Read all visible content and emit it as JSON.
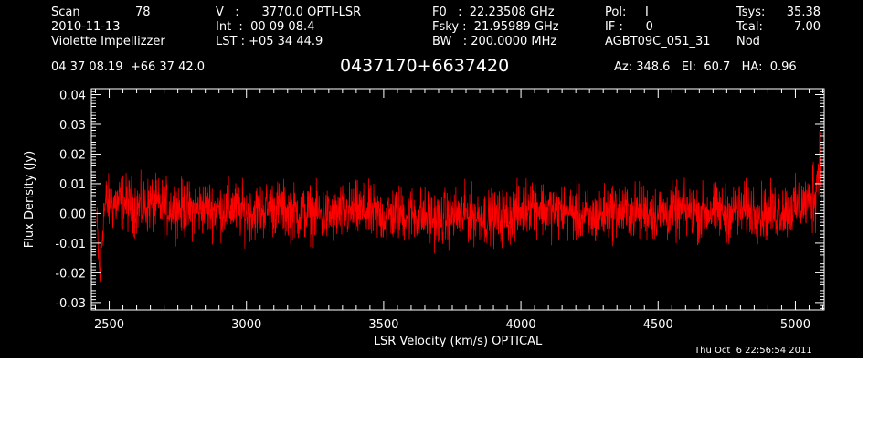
{
  "header": {
    "scan_label": "Scan",
    "scan_number": "78",
    "date": "2010-11-13",
    "observer": "Violette Impellizzer",
    "v_line": "V   :      3770.0 OPTI-LSR",
    "int_line": "Int  :  00 09 08.4",
    "lst_line": "LST : +05 34 44.9",
    "f0_line": "F0   :  22.23508 GHz",
    "fsky_line": "Fsky :  21.95989 GHz",
    "bw_line": "BW   : 200.0000 MHz",
    "pol_line": "Pol:     I",
    "if_line": "IF :      0",
    "project": "AGBT09C_051_31",
    "tsys_label": "Tsys:",
    "tsys_value": "35.38",
    "tcal_label": "Tcal:",
    "tcal_value": "7.00",
    "nod": "Nod",
    "coords": "04 37 08.19  +66 37 42.0",
    "source": "0437170+6637420",
    "az_el_ha": "Az: 348.6   El:  60.7   HA:  0.96",
    "timestamp": "Thu Oct  6 22:56:54 2011"
  },
  "colors": {
    "background": "#000000",
    "foreground": "#ffffff",
    "trace": "#ff0000"
  },
  "chart_data": {
    "type": "line",
    "xlabel": "LSR Velocity (km/s) OPTICAL",
    "ylabel": "Flux Density (Jy)",
    "xlim": [
      2435,
      5105
    ],
    "ylim": [
      -0.0325,
      0.042
    ],
    "x_ticks": [
      2500,
      3000,
      3500,
      4000,
      4500,
      5000
    ],
    "x_tick_labels": [
      "2500",
      "3000",
      "3500",
      "4000",
      "4500",
      "5000"
    ],
    "y_ticks": [
      -0.03,
      -0.02,
      -0.01,
      0.0,
      0.01,
      0.02,
      0.03,
      0.04
    ],
    "y_tick_labels": [
      "-0.03",
      "-0.02",
      "-0.01",
      "0.00",
      "0.01",
      "0.02",
      "0.03",
      "0.04"
    ],
    "grid": false,
    "series": [
      {
        "color": "#ff0000",
        "x": [
          2455,
          2460,
          2465,
          2470,
          2475,
          2480,
          2490,
          2500,
          2550,
          2600,
          2650,
          2700,
          2750,
          2800,
          2850,
          2900,
          2950,
          3000,
          3050,
          3100,
          3150,
          3200,
          3250,
          3300,
          3350,
          3400,
          3450,
          3500,
          3550,
          3600,
          3650,
          3700,
          3750,
          3800,
          3850,
          3900,
          3950,
          4000,
          4030,
          4040,
          4050,
          4100,
          4150,
          4200,
          4250,
          4300,
          4350,
          4400,
          4450,
          4500,
          4550,
          4600,
          4650,
          4700,
          4750,
          4800,
          4850,
          4900,
          4950,
          5000,
          5050,
          5070,
          5080,
          5090,
          5095
        ],
        "y": [
          -0.004,
          -0.012,
          -0.021,
          -0.015,
          -0.006,
          0.0,
          0.004,
          0.003,
          0.004,
          0.002,
          0.003,
          0.002,
          0.002,
          0.001,
          0.002,
          0.001,
          0.002,
          0.0,
          0.001,
          0.002,
          0.001,
          0.0,
          0.0,
          -0.001,
          0.0,
          0.001,
          0.0,
          -0.001,
          0.0,
          0.0,
          -0.001,
          -0.002,
          -0.001,
          0.0,
          -0.001,
          -0.002,
          -0.001,
          0.001,
          0.003,
          0.005,
          0.003,
          0.001,
          0.001,
          0.0,
          -0.002,
          0.0,
          0.001,
          0.0,
          0.001,
          0.0,
          0.0,
          0.001,
          0.0,
          0.001,
          0.0,
          0.001,
          0.001,
          0.0,
          0.001,
          0.002,
          0.004,
          0.007,
          0.012,
          0.018,
          0.02
        ]
      }
    ]
  }
}
